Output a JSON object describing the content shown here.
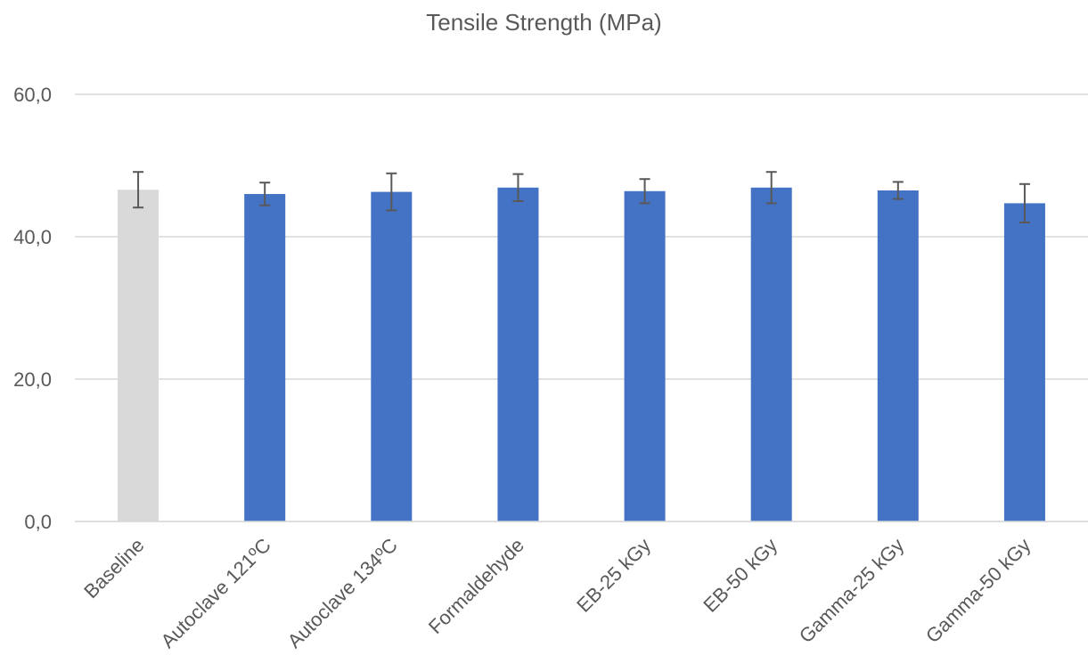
{
  "chart_data": {
    "type": "bar",
    "title": "Tensile Strength (MPa)",
    "xlabel": "",
    "ylabel": "",
    "ylim": [
      0,
      60
    ],
    "yticks": [
      "0,0",
      "20,0",
      "40,0",
      "60,0"
    ],
    "ytick_values": [
      0,
      20,
      40,
      60
    ],
    "grid": true,
    "categories": [
      "Baseline",
      "Autoclave 121ºC",
      "Autoclave 134ºC",
      "Formaldehyde",
      "EB-25 kGy",
      "EB-50 kGy",
      "Gamma-25 kGy",
      "Gamma-50 kGy"
    ],
    "values": [
      46.6,
      46.0,
      46.3,
      46.9,
      46.4,
      46.9,
      46.5,
      44.7
    ],
    "error": [
      2.5,
      1.6,
      2.6,
      1.9,
      1.7,
      2.2,
      1.2,
      2.7
    ],
    "bar_colors": [
      "#d9d9d9",
      "#4472c4",
      "#4472c4",
      "#4472c4",
      "#4472c4",
      "#4472c4",
      "#4472c4",
      "#4472c4"
    ],
    "error_bar_color": "#595959",
    "grid_color": "#d9d9d9",
    "text_color": "#595959"
  }
}
